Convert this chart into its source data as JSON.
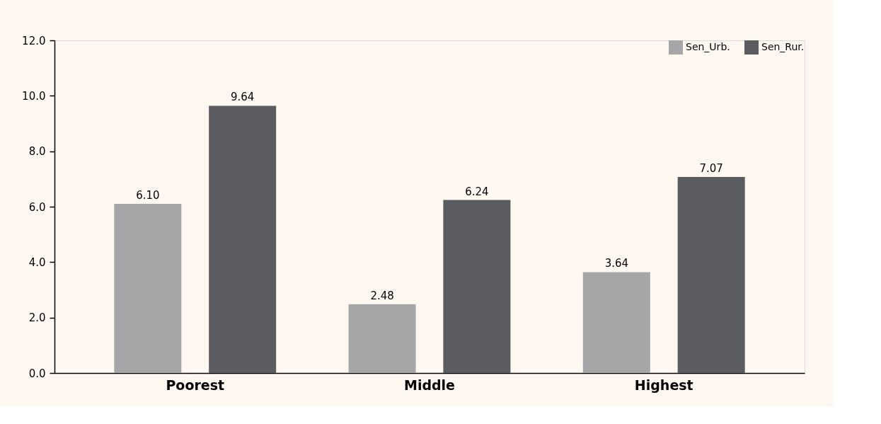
{
  "chart_data": {
    "type": "bar",
    "categories": [
      "Poorest",
      "Middle",
      "Highest"
    ],
    "series": [
      {
        "name": "Sen_Urb.",
        "color": "#a6a6a8",
        "values": [
          6.1,
          2.48,
          3.64
        ],
        "value_labels": [
          "6.10",
          "2.48",
          "3.64"
        ]
      },
      {
        "name": "Sen_Rur.",
        "color": "#5b5c60",
        "values": [
          9.64,
          6.24,
          7.07
        ],
        "value_labels": [
          "9.64",
          "6.24",
          "7.07"
        ]
      }
    ],
    "ylim": [
      0,
      12
    ],
    "yticks": [
      {
        "value": 0,
        "label": "0.0"
      },
      {
        "value": 2,
        "label": "2.0"
      },
      {
        "value": 4,
        "label": "4.0"
      },
      {
        "value": 6,
        "label": "6.0"
      },
      {
        "value": 8,
        "label": "8.0"
      },
      {
        "value": 10,
        "label": "10.0"
      },
      {
        "value": 12,
        "label": "12.0"
      }
    ],
    "grid": false,
    "legend": "top right"
  }
}
